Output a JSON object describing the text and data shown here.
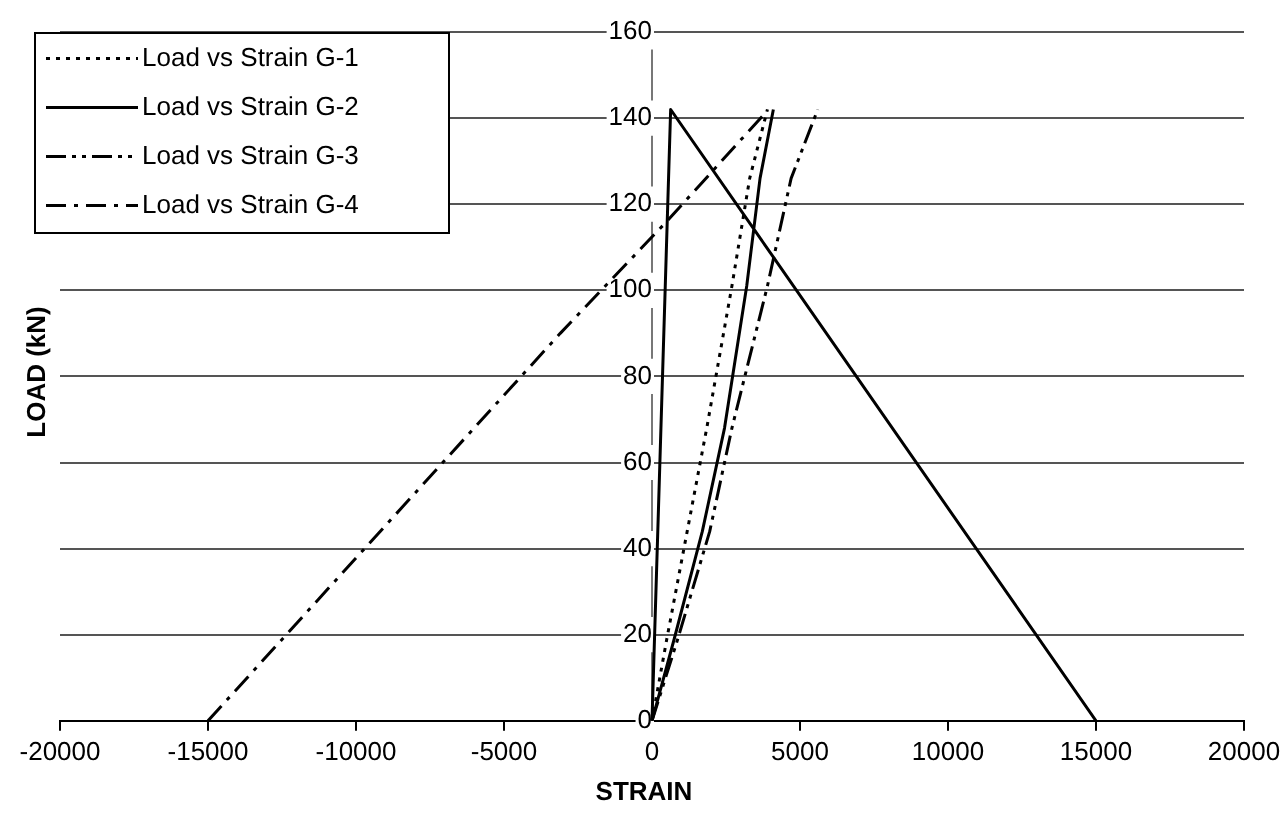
{
  "chart_data": {
    "type": "line",
    "xlabel": "STRAIN",
    "ylabel": "LOAD (kN)",
    "xlim": [
      -20000,
      20000
    ],
    "xticks": [
      -20000,
      -15000,
      -10000,
      -5000,
      0,
      5000,
      10000,
      15000,
      20000
    ],
    "ylim": [
      0,
      160
    ],
    "yticks": [
      0,
      20,
      40,
      60,
      80,
      100,
      120,
      140,
      160
    ],
    "grid": "y",
    "legend": "top left",
    "marker": "none",
    "series": [
      {
        "name": "Load vs Strain G-1",
        "color": "#000000",
        "line_style": "dotted",
        "x": [
          0,
          500,
          1850,
          2700,
          3300,
          3900
        ],
        "values": [
          0,
          19,
          68,
          101,
          126,
          142
        ]
      },
      {
        "name": "Load vs Strain G-2",
        "color": "#000000",
        "line_style": "solid",
        "x": [
          15000,
          630,
          0,
          750,
          1700,
          2450,
          3200,
          3650,
          4100
        ],
        "values": [
          0,
          142,
          0,
          19,
          44,
          68,
          101,
          126,
          142
        ]
      },
      {
        "name": "Load vs Strain G-3",
        "color": "#000000",
        "line_style": "dashdotdot",
        "x": [
          0,
          870,
          1950,
          2700,
          3900,
          4700,
          5600
        ],
        "values": [
          0,
          19,
          44,
          68,
          101,
          126,
          142
        ]
      },
      {
        "name": "Load vs Strain G-4",
        "color": "#000000",
        "line_style": "dashdot",
        "x": [
          -15000,
          -3100,
          500,
          3800
        ],
        "values": [
          0,
          90,
          116,
          141
        ]
      }
    ]
  }
}
